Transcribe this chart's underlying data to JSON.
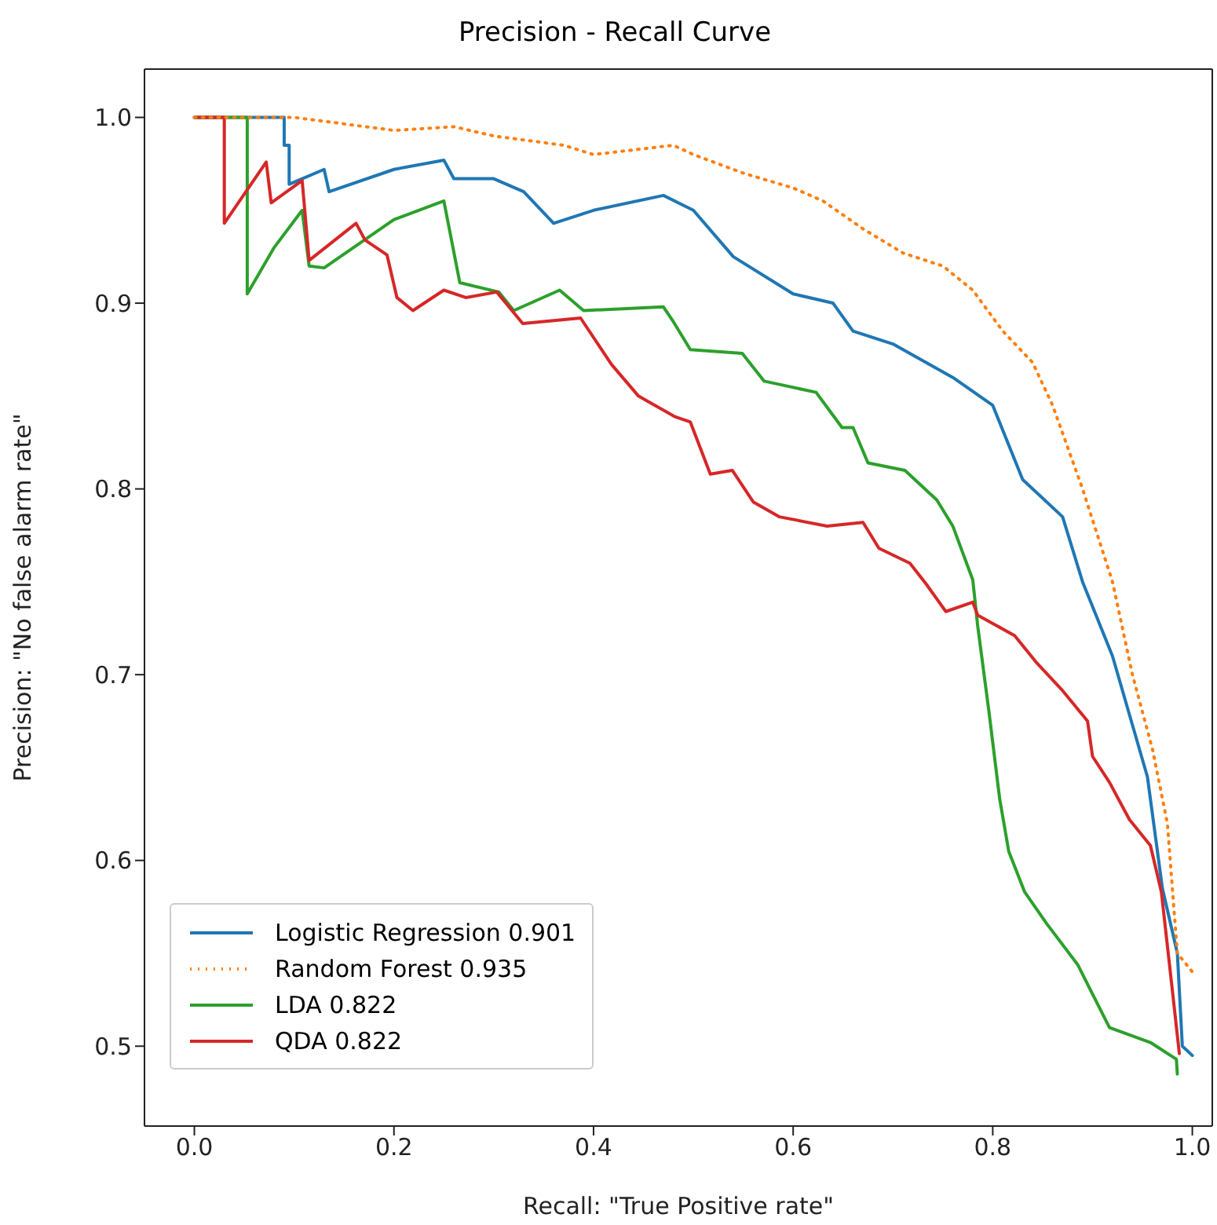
{
  "chart_data": {
    "type": "line",
    "title": "Precision - Recall Curve",
    "xlabel": "Recall: \"True Positive rate\"",
    "ylabel": "Precision: \"No false alarm rate\"",
    "xlim": [
      -0.05,
      1.02
    ],
    "ylim": [
      0.457,
      1.026
    ],
    "xticks": [
      {
        "value": 0,
        "label": "0.0"
      },
      {
        "value": 0.2,
        "label": "0.2"
      },
      {
        "value": 0.4,
        "label": "0.4"
      },
      {
        "value": 0.6,
        "label": "0.6"
      },
      {
        "value": 0.8,
        "label": "0.8"
      },
      {
        "value": 1,
        "label": "1.0"
      }
    ],
    "yticks": [
      {
        "value": 0.5,
        "label": "0.5"
      },
      {
        "value": 0.6,
        "label": "0.6"
      },
      {
        "value": 0.7,
        "label": "0.7"
      },
      {
        "value": 0.8,
        "label": "0.8"
      },
      {
        "value": 0.9,
        "label": "0.9"
      },
      {
        "value": 1,
        "label": "1.0"
      }
    ],
    "legend": "bottom left",
    "marker": "none",
    "series": [
      {
        "name": "Logistic Regression 0.901",
        "color": "#1f77b4",
        "line_style": "solid",
        "x": [
          0,
          0.09,
          0.09,
          0.095,
          0.095,
          0.13,
          0.135,
          0.2,
          0.25,
          0.26,
          0.3,
          0.33,
          0.36,
          0.4,
          0.47,
          0.5,
          0.54,
          0.6,
          0.64,
          0.66,
          0.7,
          0.76,
          0.8,
          0.83,
          0.87,
          0.89,
          0.92,
          0.955,
          0.97,
          0.985,
          0.99,
          1.0
        ],
        "values": [
          1,
          1,
          0.985,
          0.985,
          0.964,
          0.972,
          0.96,
          0.972,
          0.977,
          0.967,
          0.967,
          0.96,
          0.943,
          0.95,
          0.958,
          0.95,
          0.925,
          0.905,
          0.9,
          0.885,
          0.878,
          0.86,
          0.845,
          0.805,
          0.785,
          0.75,
          0.71,
          0.645,
          0.585,
          0.55,
          0.5,
          0.495
        ]
      },
      {
        "name": "Random Forest 0.935",
        "color": "#ff7f0e",
        "line_style": "dotted",
        "x": [
          0,
          0.1,
          0.2,
          0.26,
          0.3,
          0.37,
          0.4,
          0.48,
          0.5,
          0.55,
          0.6,
          0.63,
          0.67,
          0.71,
          0.75,
          0.78,
          0.81,
          0.84,
          0.86,
          0.89,
          0.92,
          0.94,
          0.96,
          0.975,
          0.985,
          1.0
        ],
        "values": [
          1,
          1,
          0.993,
          0.995,
          0.99,
          0.985,
          0.98,
          0.985,
          0.98,
          0.97,
          0.962,
          0.955,
          0.94,
          0.927,
          0.92,
          0.907,
          0.885,
          0.868,
          0.845,
          0.8,
          0.75,
          0.7,
          0.66,
          0.62,
          0.55,
          0.54
        ]
      },
      {
        "name": "LDA 0.822",
        "color": "#2ca02c",
        "line_style": "solid",
        "x": [
          0,
          0.053,
          0.053,
          0.08,
          0.108,
          0.115,
          0.13,
          0.2,
          0.25,
          0.266,
          0.305,
          0.32,
          0.366,
          0.39,
          0.47,
          0.48,
          0.497,
          0.549,
          0.571,
          0.623,
          0.649,
          0.66,
          0.675,
          0.712,
          0.744,
          0.76,
          0.78,
          0.785,
          0.796,
          0.807,
          0.816,
          0.832,
          0.854,
          0.885,
          0.917,
          0.958,
          0.984,
          0.985
        ],
        "values": [
          1,
          1,
          0.905,
          0.93,
          0.95,
          0.92,
          0.919,
          0.945,
          0.955,
          0.911,
          0.906,
          0.896,
          0.907,
          0.896,
          0.898,
          0.89,
          0.875,
          0.873,
          0.858,
          0.852,
          0.833,
          0.833,
          0.814,
          0.81,
          0.794,
          0.78,
          0.751,
          0.726,
          0.681,
          0.633,
          0.605,
          0.583,
          0.566,
          0.544,
          0.51,
          0.502,
          0.493,
          0.485
        ]
      },
      {
        "name": "QDA 0.822",
        "color": "#d62728",
        "line_style": "solid",
        "x": [
          0,
          0.03,
          0.03,
          0.072,
          0.077,
          0.108,
          0.115,
          0.162,
          0.171,
          0.193,
          0.203,
          0.219,
          0.25,
          0.272,
          0.303,
          0.329,
          0.387,
          0.418,
          0.445,
          0.481,
          0.497,
          0.517,
          0.539,
          0.56,
          0.586,
          0.634,
          0.67,
          0.686,
          0.717,
          0.733,
          0.753,
          0.78,
          0.785,
          0.822,
          0.843,
          0.869,
          0.895,
          0.9,
          0.917,
          0.937,
          0.958,
          0.969,
          0.98,
          0.987
        ],
        "values": [
          1,
          1,
          0.943,
          0.976,
          0.954,
          0.966,
          0.923,
          0.943,
          0.934,
          0.926,
          0.903,
          0.896,
          0.907,
          0.903,
          0.906,
          0.889,
          0.892,
          0.867,
          0.85,
          0.839,
          0.836,
          0.808,
          0.81,
          0.793,
          0.785,
          0.78,
          0.782,
          0.768,
          0.76,
          0.749,
          0.734,
          0.739,
          0.732,
          0.721,
          0.707,
          0.692,
          0.675,
          0.656,
          0.642,
          0.622,
          0.608,
          0.583,
          0.53,
          0.496
        ]
      }
    ]
  }
}
